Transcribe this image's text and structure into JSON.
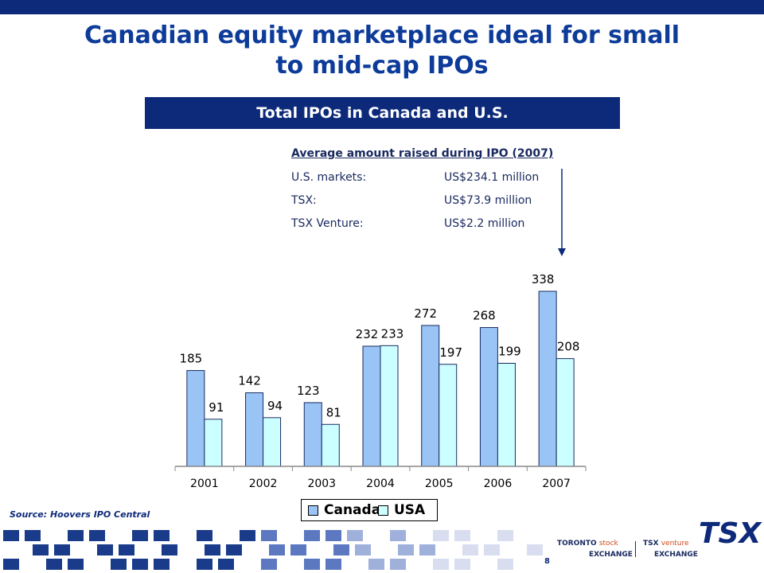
{
  "title": {
    "line1": "Canadian equity marketplace ideal for small",
    "line2": "to mid-cap IPOs"
  },
  "banner": "Total IPOs in Canada and U.S.",
  "info": {
    "heading": "Average amount raised during IPO (2007)",
    "rows": [
      {
        "label": "U.S. markets:",
        "value": "US$234.1 million"
      },
      {
        "label": "TSX:",
        "value": "US$73.9 million"
      },
      {
        "label": "TSX Venture:",
        "value": "US$2.2 million"
      }
    ]
  },
  "chart_data": {
    "type": "bar",
    "categories": [
      "2001",
      "2002",
      "2003",
      "2004",
      "2005",
      "2006",
      "2007"
    ],
    "series": [
      {
        "name": "Canada",
        "values": [
          185,
          142,
          123,
          232,
          272,
          268,
          338
        ],
        "color": "#99c4f5"
      },
      {
        "name": "USA",
        "values": [
          91,
          94,
          81,
          233,
          197,
          199,
          208
        ],
        "color": "#ccffff"
      }
    ],
    "ylim": [
      0,
      400
    ],
    "grid": false,
    "legend": "bottom"
  },
  "source": "Source: Hoovers IPO Central",
  "page_number": "8",
  "logos": {
    "toronto": "TORONTO",
    "stock": "stock",
    "exchange": "EXCHANGE",
    "tsx": "TSX",
    "venture": "venture",
    "tsx_mark": "TSX"
  },
  "colors": {
    "navy": "#0d2a7a",
    "title_blue": "#0d3b99",
    "accent_orange": "#d04a1a"
  }
}
